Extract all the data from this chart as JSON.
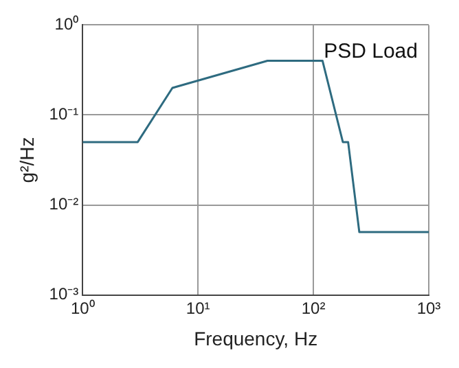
{
  "chart_data": {
    "type": "line",
    "xlabel": "Frequency, Hz",
    "ylabel": "g²/Hz",
    "annotations": [
      "PSD Load"
    ],
    "x": [
      1,
      3,
      6,
      40,
      120,
      180,
      200,
      250,
      1000
    ],
    "series": [
      {
        "color": "#2e6b80",
        "values": [
          0.05,
          0.05,
          0.2,
          0.4,
          0.4,
          0.05,
          0.05,
          0.005,
          0.005
        ]
      }
    ],
    "log": "xy",
    "xlim": [
      1,
      1000
    ],
    "ylim": [
      0.001,
      1
    ],
    "xticks": [
      {
        "value": 1,
        "label": "10⁰"
      },
      {
        "value": 10,
        "label": "10¹"
      },
      {
        "value": 100,
        "label": "10²"
      },
      {
        "value": 1000,
        "label": "10³"
      }
    ],
    "yticks": [
      {
        "value": 0.001,
        "label": "10⁻³"
      },
      {
        "value": 0.01,
        "label": "10⁻²"
      },
      {
        "value": 0.1,
        "label": "10⁻¹"
      },
      {
        "value": 1,
        "label": "10⁰"
      }
    ],
    "grid": true,
    "legend": false,
    "marker": "none",
    "line_style": "solid"
  }
}
